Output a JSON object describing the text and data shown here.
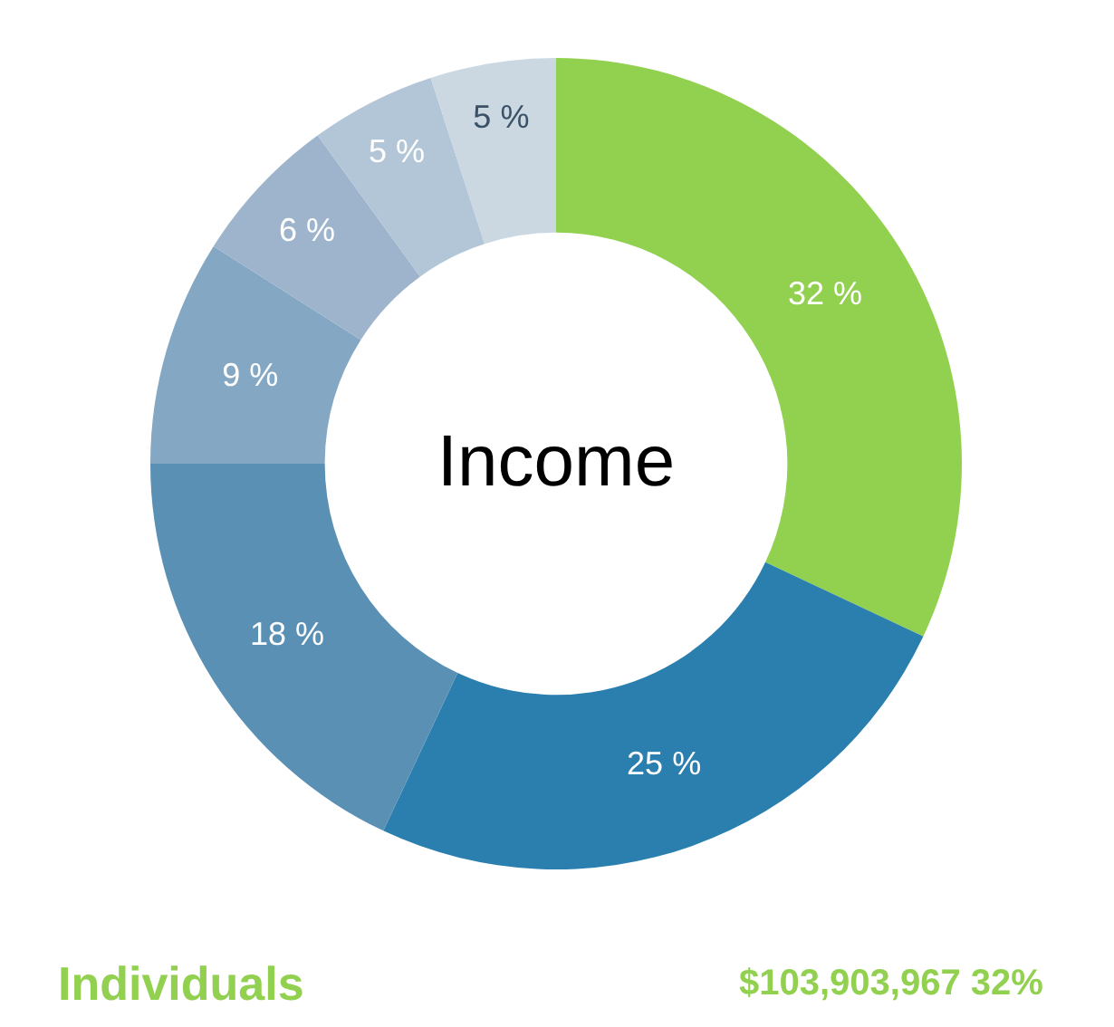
{
  "chart_data": {
    "type": "donut",
    "title": "Income",
    "categories": [
      null,
      null,
      null,
      null,
      null,
      null,
      null
    ],
    "values": [
      32,
      25,
      18,
      9,
      6,
      5,
      5
    ],
    "value_labels": [
      "32 %",
      "25 %",
      "18 %",
      "9 %",
      "6 %",
      "5 %",
      "5 %"
    ],
    "colors": [
      "#92d050",
      "#2a7faf",
      "#5b90b5",
      "#84a8c4",
      "#9db4cc",
      "#b3c6d7",
      "#cbd8e2"
    ],
    "annotations": [
      "Individuals",
      "$103,903,967 32%"
    ]
  }
}
